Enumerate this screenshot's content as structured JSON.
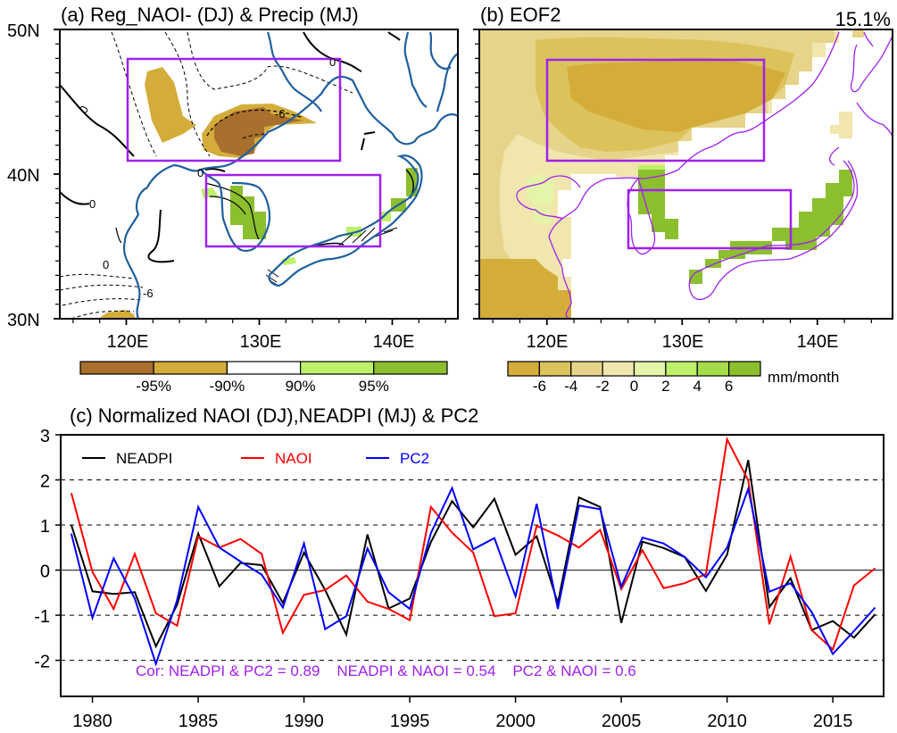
{
  "panel_a": {
    "title": "(a) Reg_NAOI- (DJ) & Precip (MJ)",
    "lat_labels": [
      "50N",
      "40N",
      "30N"
    ],
    "lon_labels": [
      "120E",
      "130E",
      "140E"
    ],
    "colorbar": {
      "colors": [
        "#a8702c",
        "#d4ac3a",
        "#ffffff",
        "#bef06a",
        "#8cbf2e"
      ],
      "labels": [
        "-95%",
        "-90%",
        "90%",
        "95%"
      ]
    },
    "contour_labels": [
      "0",
      "-6",
      "0",
      "0",
      "0",
      "0",
      "-6"
    ],
    "box_color": "#a020f0",
    "coast_color": "#1f5f9f"
  },
  "panel_b": {
    "title": "(b) EOF2",
    "variance": "15.1%",
    "lon_labels": [
      "120E",
      "130E",
      "140E"
    ],
    "colorbar": {
      "colors": [
        "#d4ac3a",
        "#dcc25a",
        "#e6d48a",
        "#f1e6ae",
        "#e4f4a8",
        "#bef06a",
        "#a6dc4a",
        "#8cbf2e"
      ],
      "labels": [
        "-6",
        "-4",
        "-2",
        "0",
        "2",
        "4",
        "6"
      ],
      "units": "mm/month"
    },
    "box_color": "#a020f0",
    "coast_color": "#a020f0"
  },
  "chart_data": {
    "type": "line",
    "title": "(c) Normalized NAOI (DJ),NEADPI (MJ) & PC2",
    "xlabel": "",
    "ylabel": "",
    "x": [
      1979,
      1980,
      1981,
      1982,
      1983,
      1984,
      1985,
      1986,
      1987,
      1988,
      1989,
      1990,
      1991,
      1992,
      1993,
      1994,
      1995,
      1996,
      1997,
      1998,
      1999,
      2000,
      2001,
      2002,
      2003,
      2004,
      2005,
      2006,
      2007,
      2008,
      2009,
      2010,
      2011,
      2012,
      2013,
      2014,
      2015,
      2016,
      2017
    ],
    "xticks": [
      "1980",
      "1985",
      "1990",
      "1995",
      "2000",
      "2005",
      "2010",
      "2015"
    ],
    "xlim": [
      1978.5,
      2017.4
    ],
    "ylim": [
      -2.8,
      3
    ],
    "yticks": [
      "3",
      "2",
      "1",
      "0",
      "-1",
      "-2"
    ],
    "grid": "dashed horizontal at 2, 1, -1, -2; solid at 0",
    "legend_position": "top-left",
    "series": [
      {
        "name": "NEADPI",
        "color": "#000000",
        "values": [
          1.0,
          -0.47,
          -0.53,
          -0.49,
          -1.69,
          -0.77,
          0.81,
          -0.36,
          0.16,
          0.11,
          -0.73,
          0.39,
          -0.44,
          -1.43,
          0.79,
          -0.85,
          -0.63,
          0.62,
          1.53,
          0.95,
          1.58,
          0.34,
          0.75,
          -0.73,
          1.61,
          1.4,
          -1.17,
          0.63,
          0.49,
          0.29,
          -0.46,
          0.34,
          2.44,
          -0.82,
          -0.18,
          -1.33,
          -1.13,
          -1.5,
          -0.98
        ]
      },
      {
        "name": "NAOI",
        "color": "#ff0000",
        "values": [
          1.71,
          -0.04,
          -0.86,
          0.36,
          -0.96,
          -1.23,
          0.75,
          0.5,
          0.69,
          0.36,
          -1.39,
          -0.55,
          -0.44,
          -0.12,
          -0.7,
          -0.86,
          -1.11,
          1.4,
          0.83,
          0.39,
          -1.02,
          -0.96,
          0.98,
          0.77,
          0.5,
          0.89,
          -0.42,
          0.44,
          -0.4,
          -0.29,
          -0.09,
          2.9,
          1.99,
          -1.2,
          0.3,
          -1.33,
          -1.76,
          -0.34,
          0.04
        ]
      },
      {
        "name": "PC2",
        "color": "#0000ff",
        "values": [
          0.81,
          -1.06,
          0.26,
          -0.63,
          -2.08,
          -0.67,
          1.4,
          0.5,
          0.19,
          -0.1,
          -0.83,
          0.59,
          -1.31,
          -1.02,
          0.48,
          -0.49,
          -0.86,
          0.82,
          1.82,
          0.46,
          0.71,
          -0.58,
          1.47,
          -0.86,
          1.43,
          1.35,
          -0.37,
          0.72,
          0.59,
          0.29,
          -0.16,
          0.5,
          1.8,
          -0.48,
          -0.29,
          -0.93,
          -1.86,
          -1.35,
          -0.83
        ]
      }
    ],
    "annotation": "Cor: NEADPI & PC2 = 0.89    NEADPI & NAOI = 0.54    PC2 & NAOI = 0.6",
    "annotation_color": "#a020f0"
  }
}
